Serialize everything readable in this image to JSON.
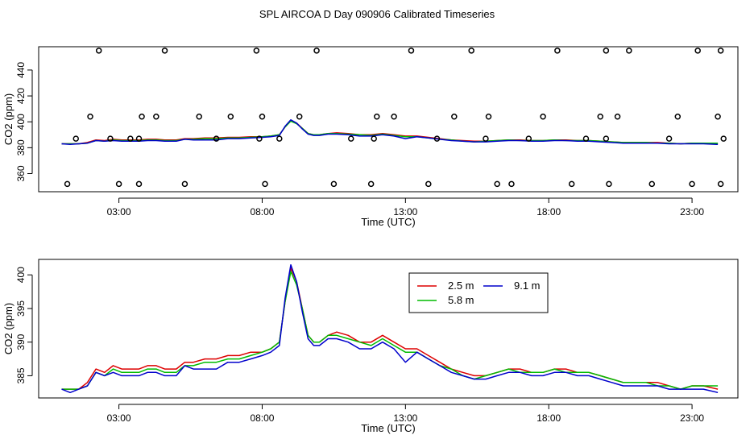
{
  "title": "SPL AIRCOA D  Day 090906  Calibrated Timeseries",
  "colors": {
    "s25": "#dd0000",
    "s58": "#00bb00",
    "s91": "#0000cc",
    "axis": "#000000"
  },
  "chart_data": [
    {
      "type": "line",
      "xlabel": "Time (UTC)",
      "ylabel": "CO2 (ppm)",
      "xlim": [
        0.2,
        24.6
      ],
      "ylim": [
        346,
        458
      ],
      "xticks": [
        3,
        8,
        13,
        18,
        23
      ],
      "xtick_labels": [
        "03:00",
        "08:00",
        "13:00",
        "18:00",
        "23:00"
      ],
      "yticks": [
        360,
        380,
        400,
        420,
        440
      ],
      "ytick_labels": [
        "360",
        "380",
        "400",
        "420",
        "440"
      ],
      "series": [
        {
          "name": "2.5 m",
          "color": "#dd0000",
          "x": [
            1.0,
            1.3,
            1.6,
            1.9,
            2.2,
            2.5,
            2.8,
            3.1,
            3.4,
            3.7,
            4.0,
            4.3,
            4.6,
            5.0,
            5.3,
            5.6,
            6.0,
            6.4,
            6.8,
            7.2,
            7.6,
            8.0,
            8.3,
            8.6,
            8.8,
            9.0,
            9.2,
            9.4,
            9.6,
            9.8,
            10.0,
            10.3,
            10.6,
            11.0,
            11.4,
            11.8,
            12.2,
            12.6,
            13.0,
            13.4,
            13.8,
            14.2,
            14.6,
            15.0,
            15.4,
            15.8,
            16.2,
            16.6,
            17.0,
            17.4,
            17.8,
            18.2,
            18.6,
            19.0,
            19.4,
            19.8,
            20.2,
            20.6,
            21.0,
            21.4,
            21.8,
            22.2,
            22.6,
            23.0,
            23.4,
            23.9
          ],
          "values": [
            383,
            383,
            383,
            384,
            386,
            385.5,
            386.5,
            386,
            386,
            386,
            386.5,
            386.5,
            386,
            386,
            387,
            387,
            387.5,
            387.5,
            388,
            388,
            388.5,
            388.5,
            389,
            390,
            396,
            401,
            399,
            395,
            391,
            390,
            390,
            391,
            391.5,
            391,
            390,
            390,
            391,
            390,
            389,
            389,
            388,
            387,
            386,
            385.5,
            385,
            385,
            385.5,
            386,
            386,
            385.5,
            385.5,
            386,
            386,
            385.5,
            385.5,
            385,
            384.5,
            384,
            384,
            384,
            384,
            383.5,
            383,
            383.5,
            383.5,
            383
          ]
        },
        {
          "name": "5.8 m",
          "color": "#00bb00",
          "x": [
            1.0,
            1.3,
            1.6,
            1.9,
            2.2,
            2.5,
            2.8,
            3.1,
            3.4,
            3.7,
            4.0,
            4.3,
            4.6,
            5.0,
            5.3,
            5.6,
            6.0,
            6.4,
            6.8,
            7.2,
            7.6,
            8.0,
            8.3,
            8.6,
            8.8,
            9.0,
            9.2,
            9.4,
            9.6,
            9.8,
            10.0,
            10.3,
            10.6,
            11.0,
            11.4,
            11.8,
            12.2,
            12.6,
            13.0,
            13.4,
            13.8,
            14.2,
            14.6,
            15.0,
            15.4,
            15.8,
            16.2,
            16.6,
            17.0,
            17.4,
            17.8,
            18.2,
            18.6,
            19.0,
            19.4,
            19.8,
            20.2,
            20.6,
            21.0,
            21.4,
            21.8,
            22.2,
            22.6,
            23.0,
            23.4,
            23.9
          ],
          "values": [
            383,
            383,
            383,
            383.5,
            385.5,
            385,
            386,
            385.5,
            385.5,
            385.5,
            386,
            386,
            385.5,
            385.5,
            386.5,
            386.5,
            387,
            387,
            387.5,
            387.5,
            388,
            388.5,
            389,
            390,
            396,
            400.5,
            398.5,
            395,
            391,
            390,
            390,
            391,
            391,
            390.5,
            390,
            389.5,
            390.5,
            389.5,
            388.5,
            388.5,
            387.5,
            386.5,
            386,
            385,
            384.5,
            385,
            385.5,
            386,
            385.5,
            385.5,
            385.5,
            386,
            385.5,
            385.5,
            385.5,
            385,
            384.5,
            384,
            384,
            384,
            383.5,
            383.5,
            383,
            383.5,
            383.5,
            383.5
          ]
        },
        {
          "name": "9.1 m",
          "color": "#0000cc",
          "x": [
            1.0,
            1.3,
            1.6,
            1.9,
            2.2,
            2.5,
            2.8,
            3.1,
            3.4,
            3.7,
            4.0,
            4.3,
            4.6,
            5.0,
            5.3,
            5.6,
            6.0,
            6.4,
            6.8,
            7.2,
            7.6,
            8.0,
            8.3,
            8.6,
            8.8,
            9.0,
            9.2,
            9.4,
            9.6,
            9.8,
            10.0,
            10.3,
            10.6,
            11.0,
            11.4,
            11.8,
            12.2,
            12.6,
            13.0,
            13.4,
            13.8,
            14.2,
            14.6,
            15.0,
            15.4,
            15.8,
            16.2,
            16.6,
            17.0,
            17.4,
            17.8,
            18.2,
            18.6,
            19.0,
            19.4,
            19.8,
            20.2,
            20.6,
            21.0,
            21.4,
            21.8,
            22.2,
            22.6,
            23.0,
            23.4,
            23.9
          ],
          "values": [
            383,
            382.5,
            383,
            383.5,
            385.5,
            385,
            385.5,
            385,
            385,
            385,
            385.5,
            385.5,
            385,
            385,
            386.5,
            386,
            386,
            386,
            387,
            387,
            387.5,
            388,
            388.5,
            389.5,
            396.5,
            401.5,
            399,
            394.5,
            390.5,
            389.5,
            389.5,
            390.5,
            390.5,
            390,
            389,
            389,
            390,
            389,
            387,
            388.5,
            387.5,
            386.5,
            385.5,
            385,
            384.5,
            384.5,
            385,
            385.5,
            385.5,
            385,
            385,
            385.5,
            385.5,
            385,
            385,
            384.5,
            384,
            383.5,
            383.5,
            383.5,
            383.5,
            383,
            383,
            383,
            383,
            382.5
          ]
        }
      ],
      "outliers": {
        "x": [
          1.2,
          1.5,
          2.0,
          2.3,
          2.7,
          3.0,
          3.4,
          3.7,
          3.7,
          3.8,
          4.3,
          4.6,
          5.3,
          5.8,
          6.4,
          6.9,
          7.8,
          7.9,
          8.0,
          8.1,
          8.6,
          9.3,
          9.9,
          10.5,
          11.1,
          11.8,
          11.9,
          12.0,
          12.6,
          13.2,
          13.8,
          14.1,
          14.7,
          15.3,
          15.8,
          15.9,
          16.2,
          16.7,
          17.3,
          17.8,
          18.3,
          18.8,
          19.3,
          19.8,
          20.0,
          20.0,
          20.1,
          20.4,
          20.8,
          21.6,
          22.2,
          22.5,
          23.0,
          23.2,
          23.9,
          24.0,
          24.0,
          24.1
        ],
        "values": [
          352,
          387,
          404,
          455,
          387,
          352,
          387,
          352,
          387,
          404,
          404,
          455,
          352,
          404,
          387,
          404,
          455,
          387,
          404,
          352,
          387,
          404,
          455,
          352,
          387,
          352,
          387,
          404,
          404,
          455,
          352,
          387,
          404,
          455,
          387,
          404,
          352,
          352,
          387,
          404,
          455,
          352,
          387,
          404,
          387,
          455,
          352,
          404,
          455,
          352,
          387,
          404,
          352,
          455,
          404,
          455,
          352,
          387
        ]
      }
    },
    {
      "type": "line",
      "xlabel": "Time (UTC)",
      "ylabel": "CO2 (ppm)",
      "xlim": [
        0.2,
        24.6
      ],
      "ylim": [
        381.7,
        402.3
      ],
      "xticks": [
        3,
        8,
        13,
        18,
        23
      ],
      "xtick_labels": [
        "03:00",
        "08:00",
        "13:00",
        "18:00",
        "23:00"
      ],
      "yticks": [
        385,
        390,
        395,
        400
      ],
      "ytick_labels": [
        "385",
        "390",
        "395",
        "400"
      ],
      "legend": {
        "position": "top-center",
        "entries": [
          {
            "label": "2.5 m",
            "color": "#dd0000"
          },
          {
            "label": "9.1 m",
            "color": "#0000cc"
          },
          {
            "label": "5.8 m",
            "color": "#00bb00"
          }
        ]
      },
      "series": [
        {
          "name": "2.5 m",
          "color": "#dd0000",
          "x": [
            1.0,
            1.3,
            1.6,
            1.9,
            2.2,
            2.5,
            2.8,
            3.1,
            3.4,
            3.7,
            4.0,
            4.3,
            4.6,
            5.0,
            5.3,
            5.6,
            6.0,
            6.4,
            6.8,
            7.2,
            7.6,
            8.0,
            8.3,
            8.6,
            8.8,
            9.0,
            9.2,
            9.4,
            9.6,
            9.8,
            10.0,
            10.3,
            10.6,
            11.0,
            11.4,
            11.8,
            12.2,
            12.6,
            13.0,
            13.4,
            13.8,
            14.2,
            14.6,
            15.0,
            15.4,
            15.8,
            16.2,
            16.6,
            17.0,
            17.4,
            17.8,
            18.2,
            18.6,
            19.0,
            19.4,
            19.8,
            20.2,
            20.6,
            21.0,
            21.4,
            21.8,
            22.2,
            22.6,
            23.0,
            23.4,
            23.9
          ],
          "values": [
            383,
            383,
            383,
            384,
            386,
            385.5,
            386.5,
            386,
            386,
            386,
            386.5,
            386.5,
            386,
            386,
            387,
            387,
            387.5,
            387.5,
            388,
            388,
            388.5,
            388.5,
            389,
            390,
            396,
            401,
            399,
            395,
            391,
            390,
            390,
            391,
            391.5,
            391,
            390,
            390,
            391,
            390,
            389,
            389,
            388,
            387,
            386,
            385.5,
            385,
            385,
            385.5,
            386,
            386,
            385.5,
            385.5,
            386,
            386,
            385.5,
            385.5,
            385,
            384.5,
            384,
            384,
            384,
            384,
            383.5,
            383,
            383.5,
            383.5,
            383
          ]
        },
        {
          "name": "5.8 m",
          "color": "#00bb00",
          "x": [
            1.0,
            1.3,
            1.6,
            1.9,
            2.2,
            2.5,
            2.8,
            3.1,
            3.4,
            3.7,
            4.0,
            4.3,
            4.6,
            5.0,
            5.3,
            5.6,
            6.0,
            6.4,
            6.8,
            7.2,
            7.6,
            8.0,
            8.3,
            8.6,
            8.8,
            9.0,
            9.2,
            9.4,
            9.6,
            9.8,
            10.0,
            10.3,
            10.6,
            11.0,
            11.4,
            11.8,
            12.2,
            12.6,
            13.0,
            13.4,
            13.8,
            14.2,
            14.6,
            15.0,
            15.4,
            15.8,
            16.2,
            16.6,
            17.0,
            17.4,
            17.8,
            18.2,
            18.6,
            19.0,
            19.4,
            19.8,
            20.2,
            20.6,
            21.0,
            21.4,
            21.8,
            22.2,
            22.6,
            23.0,
            23.4,
            23.9
          ],
          "values": [
            383,
            383,
            383,
            383.5,
            385.5,
            385,
            386,
            385.5,
            385.5,
            385.5,
            386,
            386,
            385.5,
            385.5,
            386.5,
            386.5,
            387,
            387,
            387.5,
            387.5,
            388,
            388.5,
            389,
            390,
            396,
            400.5,
            398.5,
            395,
            391,
            390,
            390,
            391,
            391,
            390.5,
            390,
            389.5,
            390.5,
            389.5,
            388.5,
            388.5,
            387.5,
            386.5,
            386,
            385,
            384.5,
            385,
            385.5,
            386,
            385.5,
            385.5,
            385.5,
            386,
            385.5,
            385.5,
            385.5,
            385,
            384.5,
            384,
            384,
            384,
            383.5,
            383.5,
            383,
            383.5,
            383.5,
            383.5
          ]
        },
        {
          "name": "9.1 m",
          "color": "#0000cc",
          "x": [
            1.0,
            1.3,
            1.6,
            1.9,
            2.2,
            2.5,
            2.8,
            3.1,
            3.4,
            3.7,
            4.0,
            4.3,
            4.6,
            5.0,
            5.3,
            5.6,
            6.0,
            6.4,
            6.8,
            7.2,
            7.6,
            8.0,
            8.3,
            8.6,
            8.8,
            9.0,
            9.2,
            9.4,
            9.6,
            9.8,
            10.0,
            10.3,
            10.6,
            11.0,
            11.4,
            11.8,
            12.2,
            12.6,
            13.0,
            13.4,
            13.8,
            14.2,
            14.6,
            15.0,
            15.4,
            15.8,
            16.2,
            16.6,
            17.0,
            17.4,
            17.8,
            18.2,
            18.6,
            19.0,
            19.4,
            19.8,
            20.2,
            20.6,
            21.0,
            21.4,
            21.8,
            22.2,
            22.6,
            23.0,
            23.4,
            23.9
          ],
          "values": [
            383,
            382.5,
            383,
            383.5,
            385.5,
            385,
            385.5,
            385,
            385,
            385,
            385.5,
            385.5,
            385,
            385,
            386.5,
            386,
            386,
            386,
            387,
            387,
            387.5,
            388,
            388.5,
            389.5,
            396.5,
            401.5,
            399,
            394.5,
            390.5,
            389.5,
            389.5,
            390.5,
            390.5,
            390,
            389,
            389,
            390,
            389,
            387,
            388.5,
            387.5,
            386.5,
            385.5,
            385,
            384.5,
            384.5,
            385,
            385.5,
            385.5,
            385,
            385,
            385.5,
            385.5,
            385,
            385,
            384.5,
            384,
            383.5,
            383.5,
            383.5,
            383.5,
            383,
            383,
            383,
            383,
            382.5
          ]
        }
      ]
    }
  ]
}
